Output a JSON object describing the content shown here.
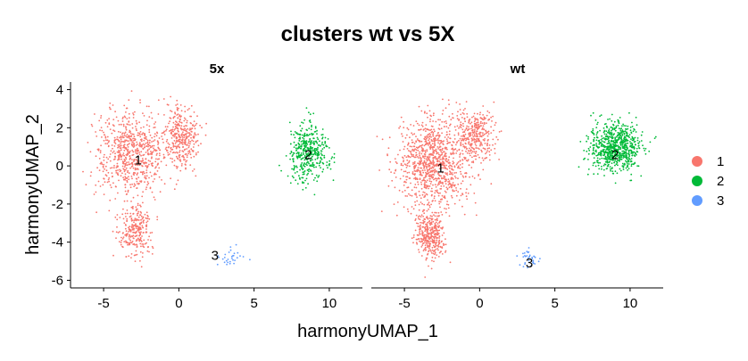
{
  "chart_data": {
    "type": "scatter",
    "title": "clusters wt vs 5X",
    "xlabel": "harmonyUMAP_1",
    "ylabel": "harmonyUMAP_2",
    "xlim": [
      -7.2,
      12.2
    ],
    "ylim": [
      -6.4,
      4.4
    ],
    "xticks": [
      -5,
      0,
      5,
      10
    ],
    "yticks": [
      -6,
      -4,
      -2,
      0,
      2,
      4
    ],
    "grid": false,
    "legend_position": "right",
    "legend": [
      {
        "label": "1",
        "color": "#F8766D"
      },
      {
        "label": "2",
        "color": "#00BA38"
      },
      {
        "label": "3",
        "color": "#619CFF"
      }
    ],
    "facets": [
      {
        "label": "5x",
        "cluster_labels": [
          {
            "text": "1",
            "x": -2.7,
            "y": 0.3
          },
          {
            "text": "2",
            "x": 8.6,
            "y": 0.6
          },
          {
            "text": "3",
            "x": 2.4,
            "y": -4.7
          }
        ]
      },
      {
        "label": "wt",
        "cluster_labels": [
          {
            "text": "1",
            "x": -2.6,
            "y": -0.1
          },
          {
            "text": "2",
            "x": 9.0,
            "y": 0.6
          },
          {
            "text": "3",
            "x": 3.3,
            "y": -5.1
          }
        ]
      }
    ]
  }
}
